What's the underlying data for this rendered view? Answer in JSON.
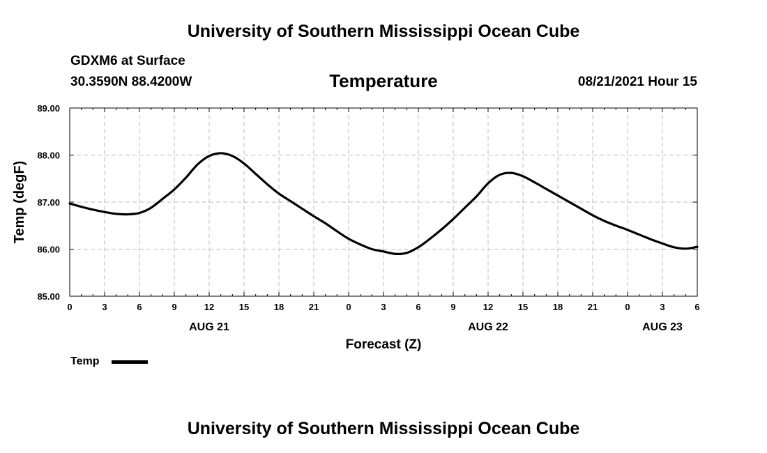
{
  "header": {
    "title": "University of Southern Mississippi Ocean Cube",
    "station": "GDXM6 at Surface",
    "coords": "30.3590N  88.4200W",
    "variable": "Temperature",
    "datetime": "08/21/2021 Hour 15"
  },
  "footer": {
    "title": "University of Southern Mississippi Ocean Cube"
  },
  "legend": {
    "label": "Temp"
  },
  "chart_data": {
    "type": "line",
    "title": "Temperature",
    "xlabel": "Forecast (Z)",
    "ylabel": "Temp (degF)",
    "xlim": [
      0,
      54
    ],
    "ylim": [
      85.0,
      89.0
    ],
    "grid": true,
    "legend_position": "bottom-left",
    "x_ticks": [
      0,
      3,
      6,
      9,
      12,
      15,
      18,
      21,
      24,
      27,
      30,
      33,
      36,
      39,
      42,
      45,
      48,
      51,
      54
    ],
    "x_tick_labels": [
      "0",
      "3",
      "6",
      "9",
      "12",
      "15",
      "18",
      "21",
      "0",
      "3",
      "6",
      "9",
      "12",
      "15",
      "18",
      "21",
      "0",
      "3",
      "6"
    ],
    "y_ticks": [
      85.0,
      86.0,
      87.0,
      88.0,
      89.0
    ],
    "y_tick_labels": [
      "85.00",
      "86.00",
      "87.00",
      "88.00",
      "89.00"
    ],
    "date_labels": [
      {
        "x": 12,
        "label": "AUG 21"
      },
      {
        "x": 36,
        "label": "AUG 22"
      },
      {
        "x": 51,
        "label": "AUG 23"
      }
    ],
    "series": [
      {
        "name": "Temp",
        "color": "#000000",
        "x": [
          0,
          1,
          2,
          3,
          4,
          5,
          6,
          7,
          8,
          9,
          10,
          11,
          12,
          13,
          14,
          15,
          16,
          17,
          18,
          19,
          20,
          21,
          22,
          23,
          24,
          25,
          26,
          27,
          28,
          29,
          30,
          31,
          32,
          33,
          34,
          35,
          36,
          37,
          38,
          39,
          40,
          41,
          42,
          43,
          44,
          45,
          46,
          47,
          48,
          49,
          50,
          51,
          52,
          53,
          54
        ],
        "values": [
          86.97,
          86.9,
          86.84,
          86.79,
          86.75,
          86.74,
          86.77,
          86.88,
          87.07,
          87.27,
          87.52,
          87.8,
          87.98,
          88.04,
          87.98,
          87.82,
          87.6,
          87.38,
          87.18,
          87.02,
          86.86,
          86.7,
          86.55,
          86.38,
          86.22,
          86.1,
          86.0,
          85.95,
          85.9,
          85.92,
          86.04,
          86.22,
          86.42,
          86.64,
          86.88,
          87.12,
          87.4,
          87.58,
          87.62,
          87.55,
          87.42,
          87.28,
          87.14,
          87.0,
          86.86,
          86.72,
          86.6,
          86.5,
          86.41,
          86.31,
          86.21,
          86.12,
          86.04,
          86.01,
          86.05
        ]
      }
    ]
  }
}
